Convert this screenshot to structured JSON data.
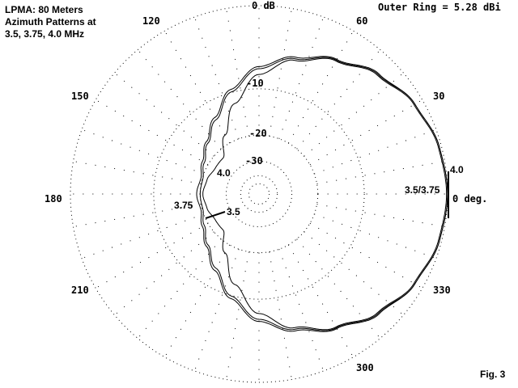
{
  "title_lines": [
    "LPMA: 80 Meters",
    "Azimuth Patterns at",
    "3.5, 3.75, 4.0 MHz"
  ],
  "outer_ring_label": "Outer Ring = 5.28 dBi",
  "figure_label": "Fig. 3",
  "chart_data": {
    "type": "polar-line",
    "scale": "ARRL log",
    "outer_ring_dbi": 5.28,
    "ring_labels": [
      "0 dB",
      "-10",
      "-20",
      "-30"
    ],
    "rings_db": [
      0,
      -10,
      -20,
      -30,
      -40,
      -50
    ],
    "angle_labels": [
      "0 deg.",
      "30",
      "60",
      "120",
      "150",
      "180",
      "210",
      "300",
      "330"
    ],
    "angle_grid_step_deg": 10,
    "angles_deg": [
      0,
      15,
      30,
      45,
      60,
      75,
      90,
      105,
      120,
      135,
      150,
      165,
      180
    ],
    "symmetric_about_0_deg": true,
    "series": [
      {
        "name": "3.5",
        "values_db": [
          0,
          -0.2,
          -0.8,
          -1.9,
          -3.4,
          -5.1,
          -7.0,
          -9.9,
          -13.5,
          -16.5,
          -18.8,
          -20.2,
          -20.0
        ]
      },
      {
        "name": "3.75",
        "values_db": [
          0,
          -0.2,
          -0.8,
          -1.8,
          -3.3,
          -4.9,
          -6.7,
          -9.5,
          -13.0,
          -16.0,
          -18.2,
          -19.6,
          -19.0
        ]
      },
      {
        "name": "4.0",
        "values_db": [
          -0.1,
          -0.3,
          -0.9,
          -2.0,
          -3.5,
          -5.3,
          -7.8,
          -12.0,
          -17.5,
          -22.5,
          -22.5,
          -21.5,
          -20.8
        ]
      }
    ],
    "curve_labels": [
      "4.0",
      "3.5/3.75",
      "4.0",
      "3.75",
      "3.5"
    ],
    "line_color": "#000000",
    "grid": true
  }
}
